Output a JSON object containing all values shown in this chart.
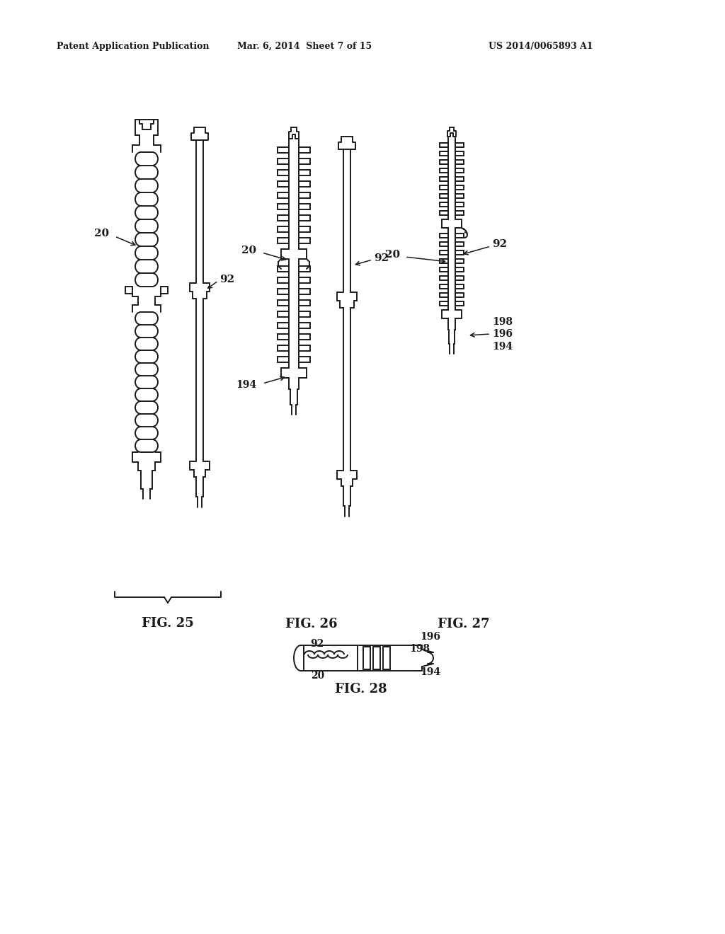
{
  "background_color": "#ffffff",
  "line_color": "#1a1a1a",
  "header_left": "Patent Application Publication",
  "header_center": "Mar. 6, 2014  Sheet 7 of 15",
  "header_right": "US 2014/0065893 A1",
  "fig25_label": "FIG. 25",
  "fig26_label": "FIG. 26",
  "fig27_label": "FIG. 27",
  "fig28_label": "FIG. 28"
}
